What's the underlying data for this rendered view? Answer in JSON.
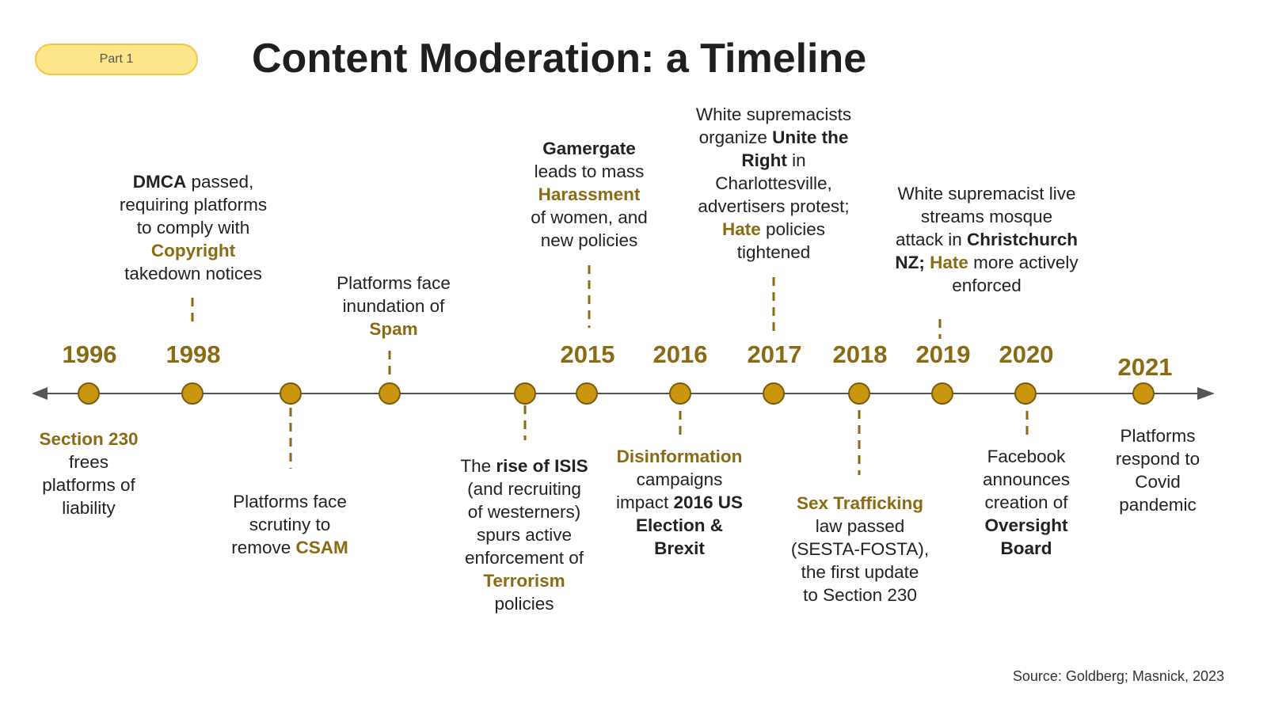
{
  "badge": {
    "label": "Part 1"
  },
  "title": "Content Moderation: a Timeline",
  "colors": {
    "accent": "#8a6a12",
    "dot": "#c9970f",
    "dot_border": "#7a5b0c",
    "axis": "#555555",
    "badge_fill": "#fde68a",
    "badge_border": "#f4c542"
  },
  "years": [
    "1996",
    "1998",
    "2015",
    "2016",
    "2017",
    "2018",
    "2019",
    "2020",
    "2021"
  ],
  "events": [
    {
      "line1": [
        "",
        "Section 230",
        ""
      ],
      "line2": "frees",
      "line3": "platforms of",
      "line4": "liability"
    },
    {
      "a": "DMCA",
      "b": " passed,",
      "c": "requiring platforms",
      "d": "to comply with",
      "e": "Copyright",
      "f": "takedown notices"
    },
    {
      "a": "Platforms face",
      "b": "scrutiny to",
      "c": "remove ",
      "d": "CSAM"
    },
    {
      "a": "Platforms face",
      "b": "inundation of",
      "c": "Spam"
    },
    {
      "a": "The ",
      "b": "rise of ISIS",
      "c": "(and recruiting",
      "d": "of westerners)",
      "e": "spurs active",
      "f": "enforcement of",
      "g": "Terrorism",
      "h": "policies"
    },
    {
      "a": "Gamergate",
      "b": "leads to mass",
      "c": "Harassment",
      "d": "of women, and",
      "e": "new policies"
    },
    {
      "a": "Disinformation",
      "b": "campaigns",
      "c": "impact ",
      "d": "2016 US",
      "e": "Election &",
      "f": "Brexit"
    },
    {
      "a": "White supremacists",
      "b": "organize ",
      "c": "Unite the",
      "d": "Right",
      "e": " in",
      "f": "Charlottesville,",
      "g": "advertisers protest;",
      "h": "Hate",
      "i": " policies",
      "j": "tightened"
    },
    {
      "a": "Sex Trafficking",
      "b": "law passed",
      "c": "(SESTA-FOSTA),",
      "d": "the first update",
      "e": "to Section 230"
    },
    {
      "a": "White supremacist live",
      "b": "streams mosque",
      "c": "attack in ",
      "d": "Christchurch",
      "e": "NZ; ",
      "f": "Hate",
      "g": " more actively",
      "h": "enforced"
    },
    {
      "a": "Facebook",
      "b": "announces",
      "c": "creation of",
      "d": "Oversight",
      "e": "Board"
    },
    {
      "a": "Platforms",
      "b": "respond to",
      "c": "Covid",
      "d": "pandemic"
    }
  ],
  "source": "Source: Goldberg; Masnick, 2023"
}
